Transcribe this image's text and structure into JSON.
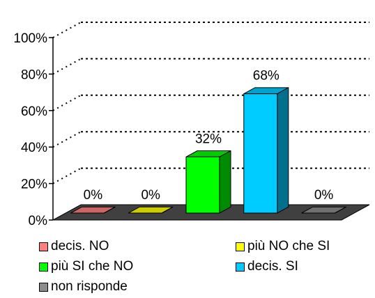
{
  "chart_data": {
    "type": "bar",
    "categories": [
      "decis. NO",
      "più NO che SI",
      "più SI che NO",
      "decis. SI",
      "non risponde"
    ],
    "values": [
      0,
      0,
      32,
      68,
      0
    ],
    "data_labels": [
      "0%",
      "0%",
      "32%",
      "68%",
      "0%"
    ],
    "colors": [
      "#FF7F7F",
      "#FFFF00",
      "#00FF00",
      "#00CCFF",
      "#8C8C8C"
    ],
    "y_ticks": [
      "0%",
      "20%",
      "40%",
      "60%",
      "80%",
      "100%"
    ],
    "ylim": [
      0,
      100
    ],
    "grid": true,
    "three_d": true,
    "legend_position": "bottom",
    "legend": [
      "decis. NO",
      "più NO che SI",
      "più SI che NO",
      "decis. SI",
      "non risponde"
    ]
  }
}
